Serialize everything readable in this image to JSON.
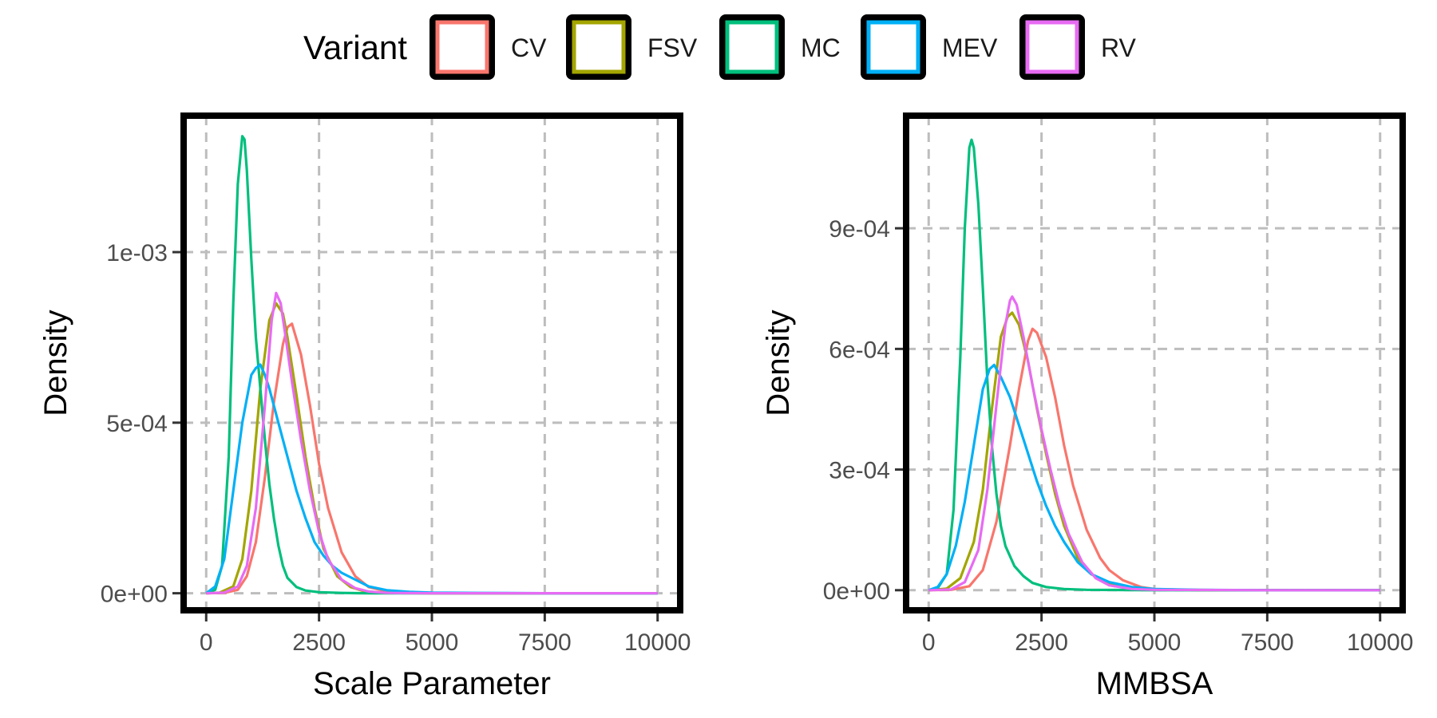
{
  "legend": {
    "title": "Variant"
  },
  "chart_data": [
    {
      "type": "line",
      "title": "",
      "xlabel": "Scale Parameter",
      "ylabel": "Density",
      "xlim": [
        -500,
        10500
      ],
      "ylim": [
        -5e-05,
        0.0014
      ],
      "x_ticks": [
        0,
        2500,
        5000,
        7500,
        10000
      ],
      "x_tick_labels": [
        "0",
        "2500",
        "5000",
        "7500",
        "10000"
      ],
      "y_ticks": [
        0,
        0.0005,
        0.001
      ],
      "y_tick_labels": [
        "0e+00",
        "5e-04",
        "1e-03"
      ],
      "grid": true,
      "legend_position": "top",
      "series": [
        {
          "name": "CV",
          "color": "#F8766D",
          "x": [
            0,
            400,
            700,
            900,
            1100,
            1300,
            1500,
            1700,
            1800,
            1900,
            2100,
            2300,
            2500,
            2700,
            3000,
            3300,
            3600,
            4000,
            4500,
            5000,
            6000,
            7500,
            10000
          ],
          "y": [
            0,
            1e-06,
            1e-05,
            5e-05,
            0.00015,
            0.00034,
            0.00056,
            0.00073,
            0.00078,
            0.00079,
            0.0007,
            0.00055,
            0.00038,
            0.00025,
            0.00012,
            5e-05,
            1.8e-05,
            6e-06,
            2e-06,
            0,
            0,
            0,
            0
          ]
        },
        {
          "name": "FSV",
          "color": "#A3A500",
          "x": [
            0,
            300,
            600,
            800,
            1000,
            1200,
            1400,
            1550,
            1700,
            1800,
            2000,
            2200,
            2400,
            2600,
            2900,
            3200,
            3500,
            4000,
            5000,
            7500,
            10000
          ],
          "y": [
            0,
            2e-06,
            2e-05,
            0.0001,
            0.0003,
            0.0006,
            0.0008,
            0.00085,
            0.00082,
            0.00075,
            0.00058,
            0.0004,
            0.00025,
            0.00013,
            5e-05,
            1.8e-05,
            6e-06,
            1e-06,
            0,
            0,
            0
          ]
        },
        {
          "name": "MC",
          "color": "#00BF7D",
          "x": [
            0,
            200,
            350,
            500,
            600,
            700,
            800,
            850,
            900,
            1000,
            1100,
            1200,
            1300,
            1400,
            1500,
            1600,
            1700,
            1800,
            2000,
            2200,
            2500,
            3000,
            3500,
            5000,
            7500,
            10000
          ],
          "y": [
            0,
            1e-05,
            8e-05,
            0.0004,
            0.00085,
            0.0012,
            0.00134,
            0.00133,
            0.00124,
            0.00098,
            0.00075,
            0.0006,
            0.00045,
            0.00032,
            0.00022,
            0.00014,
            8e-05,
            4.5e-05,
            1.8e-05,
            8e-06,
            3e-06,
            1e-06,
            0,
            0,
            0,
            0
          ]
        },
        {
          "name": "MEV",
          "color": "#00B0F6",
          "x": [
            0,
            200,
            400,
            600,
            800,
            1000,
            1100,
            1200,
            1300,
            1400,
            1600,
            1800,
            2000,
            2200,
            2400,
            2600,
            2800,
            3000,
            3300,
            3600,
            4000,
            4500,
            5000,
            6000,
            7500,
            10000
          ],
          "y": [
            0,
            2e-05,
            0.0001,
            0.0003,
            0.0005,
            0.00064,
            0.00066,
            0.00067,
            0.00064,
            0.0006,
            0.0005,
            0.0004,
            0.0003,
            0.00022,
            0.00015,
            0.00011,
            8e-05,
            6e-05,
            4e-05,
            2e-05,
            9e-06,
            4e-06,
            2e-06,
            1e-06,
            0,
            0
          ]
        },
        {
          "name": "RV",
          "color": "#E76BF3",
          "x": [
            0,
            400,
            700,
            900,
            1100,
            1300,
            1450,
            1550,
            1650,
            1750,
            1900,
            2100,
            2300,
            2500,
            2700,
            3000,
            3300,
            3600,
            4000,
            5000,
            7500,
            10000
          ],
          "y": [
            0,
            2e-06,
            2e-05,
            8e-05,
            0.00025,
            0.00055,
            0.0008,
            0.00088,
            0.00085,
            0.00076,
            0.00062,
            0.00045,
            0.0003,
            0.00018,
            0.0001,
            4e-05,
            1.5e-05,
            5e-06,
            1e-06,
            0,
            0,
            0
          ]
        }
      ]
    },
    {
      "type": "line",
      "title": "",
      "xlabel": "MMBSA",
      "ylabel": "Density",
      "xlim": [
        -500,
        10500
      ],
      "ylim": [
        -5e-05,
        0.00118
      ],
      "x_ticks": [
        0,
        2500,
        5000,
        7500,
        10000
      ],
      "x_tick_labels": [
        "0",
        "2500",
        "5000",
        "7500",
        "10000"
      ],
      "y_ticks": [
        0,
        0.0003,
        0.0006,
        0.0009
      ],
      "y_tick_labels": [
        "0e+00",
        "3e-04",
        "6e-04",
        "9e-04"
      ],
      "grid": true,
      "legend_position": "top",
      "series": [
        {
          "name": "CV",
          "color": "#F8766D",
          "x": [
            0,
            500,
            900,
            1200,
            1500,
            1800,
            2000,
            2200,
            2300,
            2400,
            2600,
            2800,
            3000,
            3200,
            3500,
            3800,
            4000,
            4300,
            4700,
            5000,
            6000,
            7500,
            10000
          ],
          "y": [
            0,
            1e-06,
            1e-05,
            5e-05,
            0.00017,
            0.00036,
            0.0005,
            0.00062,
            0.00065,
            0.00064,
            0.00058,
            0.00048,
            0.00036,
            0.00026,
            0.00015,
            8e-05,
            5e-05,
            2.5e-05,
            8e-06,
            3e-06,
            0,
            0,
            0
          ]
        },
        {
          "name": "FSV",
          "color": "#A3A500",
          "x": [
            0,
            400,
            700,
            1000,
            1200,
            1400,
            1600,
            1750,
            1850,
            2000,
            2200,
            2400,
            2600,
            2800,
            3000,
            3300,
            3600,
            4000,
            4500,
            5000,
            7500,
            10000
          ],
          "y": [
            0,
            4e-06,
            3e-05,
            0.00012,
            0.00025,
            0.00045,
            0.00063,
            0.00068,
            0.00069,
            0.00066,
            0.00057,
            0.00045,
            0.00034,
            0.00024,
            0.00016,
            8e-05,
            4e-05,
            1.5e-05,
            4e-06,
            1e-06,
            0,
            0
          ]
        },
        {
          "name": "MC",
          "color": "#00BF7D",
          "x": [
            0,
            200,
            400,
            550,
            700,
            800,
            900,
            950,
            1000,
            1100,
            1200,
            1300,
            1400,
            1500,
            1600,
            1700,
            1900,
            2100,
            2300,
            2600,
            3000,
            3500,
            5000,
            7500,
            10000
          ],
          "y": [
            0,
            5e-06,
            4e-05,
            0.0002,
            0.00058,
            0.0009,
            0.0011,
            0.00112,
            0.0011,
            0.00096,
            0.00075,
            0.00052,
            0.00036,
            0.00024,
            0.00016,
            0.00011,
            6e-05,
            3.5e-05,
            1.8e-05,
            8e-06,
            3e-06,
            1e-06,
            0,
            0,
            0
          ]
        },
        {
          "name": "MEV",
          "color": "#00B0F6",
          "x": [
            0,
            200,
            400,
            600,
            800,
            1000,
            1200,
            1350,
            1450,
            1600,
            1800,
            2000,
            2200,
            2400,
            2600,
            2800,
            3000,
            3300,
            3600,
            4000,
            4500,
            5000,
            6000,
            7500,
            10000
          ],
          "y": [
            0,
            8e-06,
            4e-05,
            0.00011,
            0.00022,
            0.00036,
            0.0005,
            0.00055,
            0.00056,
            0.00053,
            0.00048,
            0.00041,
            0.00034,
            0.00027,
            0.00021,
            0.00016,
            0.00012,
            7e-05,
            4e-05,
            2e-05,
            8e-06,
            3e-06,
            1e-06,
            0,
            0
          ]
        },
        {
          "name": "RV",
          "color": "#E76BF3",
          "x": [
            0,
            500,
            800,
            1100,
            1300,
            1500,
            1700,
            1800,
            1850,
            1950,
            2100,
            2300,
            2500,
            2700,
            2900,
            3100,
            3400,
            3700,
            4000,
            4500,
            5000,
            7500,
            10000
          ],
          "y": [
            0,
            2e-06,
            2e-05,
            0.0001,
            0.00025,
            0.00046,
            0.00066,
            0.00072,
            0.00073,
            0.00071,
            0.00063,
            0.00051,
            0.0004,
            0.0003,
            0.00021,
            0.00014,
            7e-05,
            3e-05,
            1.2e-05,
            3e-06,
            1e-06,
            0,
            0
          ]
        }
      ]
    }
  ]
}
